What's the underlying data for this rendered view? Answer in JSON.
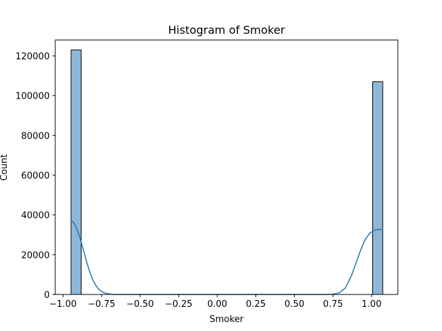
{
  "chart_data": {
    "type": "bar",
    "title": "Histogram of Smoker",
    "xlabel": "Smoker",
    "ylabel": "Count",
    "xlim": [
      -1.05,
      1.17
    ],
    "ylim": [
      0,
      128000
    ],
    "xticks": [
      -1.0,
      -0.75,
      -0.5,
      -0.25,
      0.0,
      0.25,
      0.5,
      0.75,
      1.0
    ],
    "xtick_labels": [
      "−1.00",
      "−0.75",
      "−0.50",
      "−0.25",
      "0.00",
      "0.25",
      "0.50",
      "0.75",
      "1.00"
    ],
    "yticks": [
      0,
      20000,
      40000,
      60000,
      80000,
      100000,
      120000
    ],
    "ytick_labels": [
      "0",
      "20000",
      "40000",
      "60000",
      "80000",
      "100000",
      "120000"
    ],
    "bins": [
      {
        "x0": -0.9475,
        "x1": -0.882,
        "count": 123000
      },
      {
        "x0": 1.007,
        "x1": 1.0725,
        "count": 107000
      }
    ],
    "kde": {
      "x": [
        -0.95,
        -0.93,
        -0.91,
        -0.89,
        -0.87,
        -0.85,
        -0.83,
        -0.81,
        -0.79,
        -0.77,
        -0.75,
        -0.73,
        -0.71,
        -0.69,
        -0.67,
        -0.65,
        -0.6,
        -0.5,
        0.0,
        0.5,
        0.7,
        0.75,
        0.79,
        0.83,
        0.87,
        0.9,
        0.93,
        0.96,
        0.99,
        1.02,
        1.05,
        1.075
      ],
      "y": [
        37500,
        36000,
        33000,
        28500,
        23000,
        17300,
        12200,
        8000,
        4900,
        2800,
        1500,
        750,
        350,
        150,
        60,
        20,
        0,
        0,
        0,
        0,
        0,
        150,
        800,
        3200,
        9500,
        16000,
        22500,
        27800,
        31000,
        32400,
        32700,
        32600
      ]
    },
    "grid": false,
    "colors": {
      "bar_fill": "#8fb7d7",
      "bar_edge": "#000000",
      "kde_line": "#1f77b4"
    }
  }
}
